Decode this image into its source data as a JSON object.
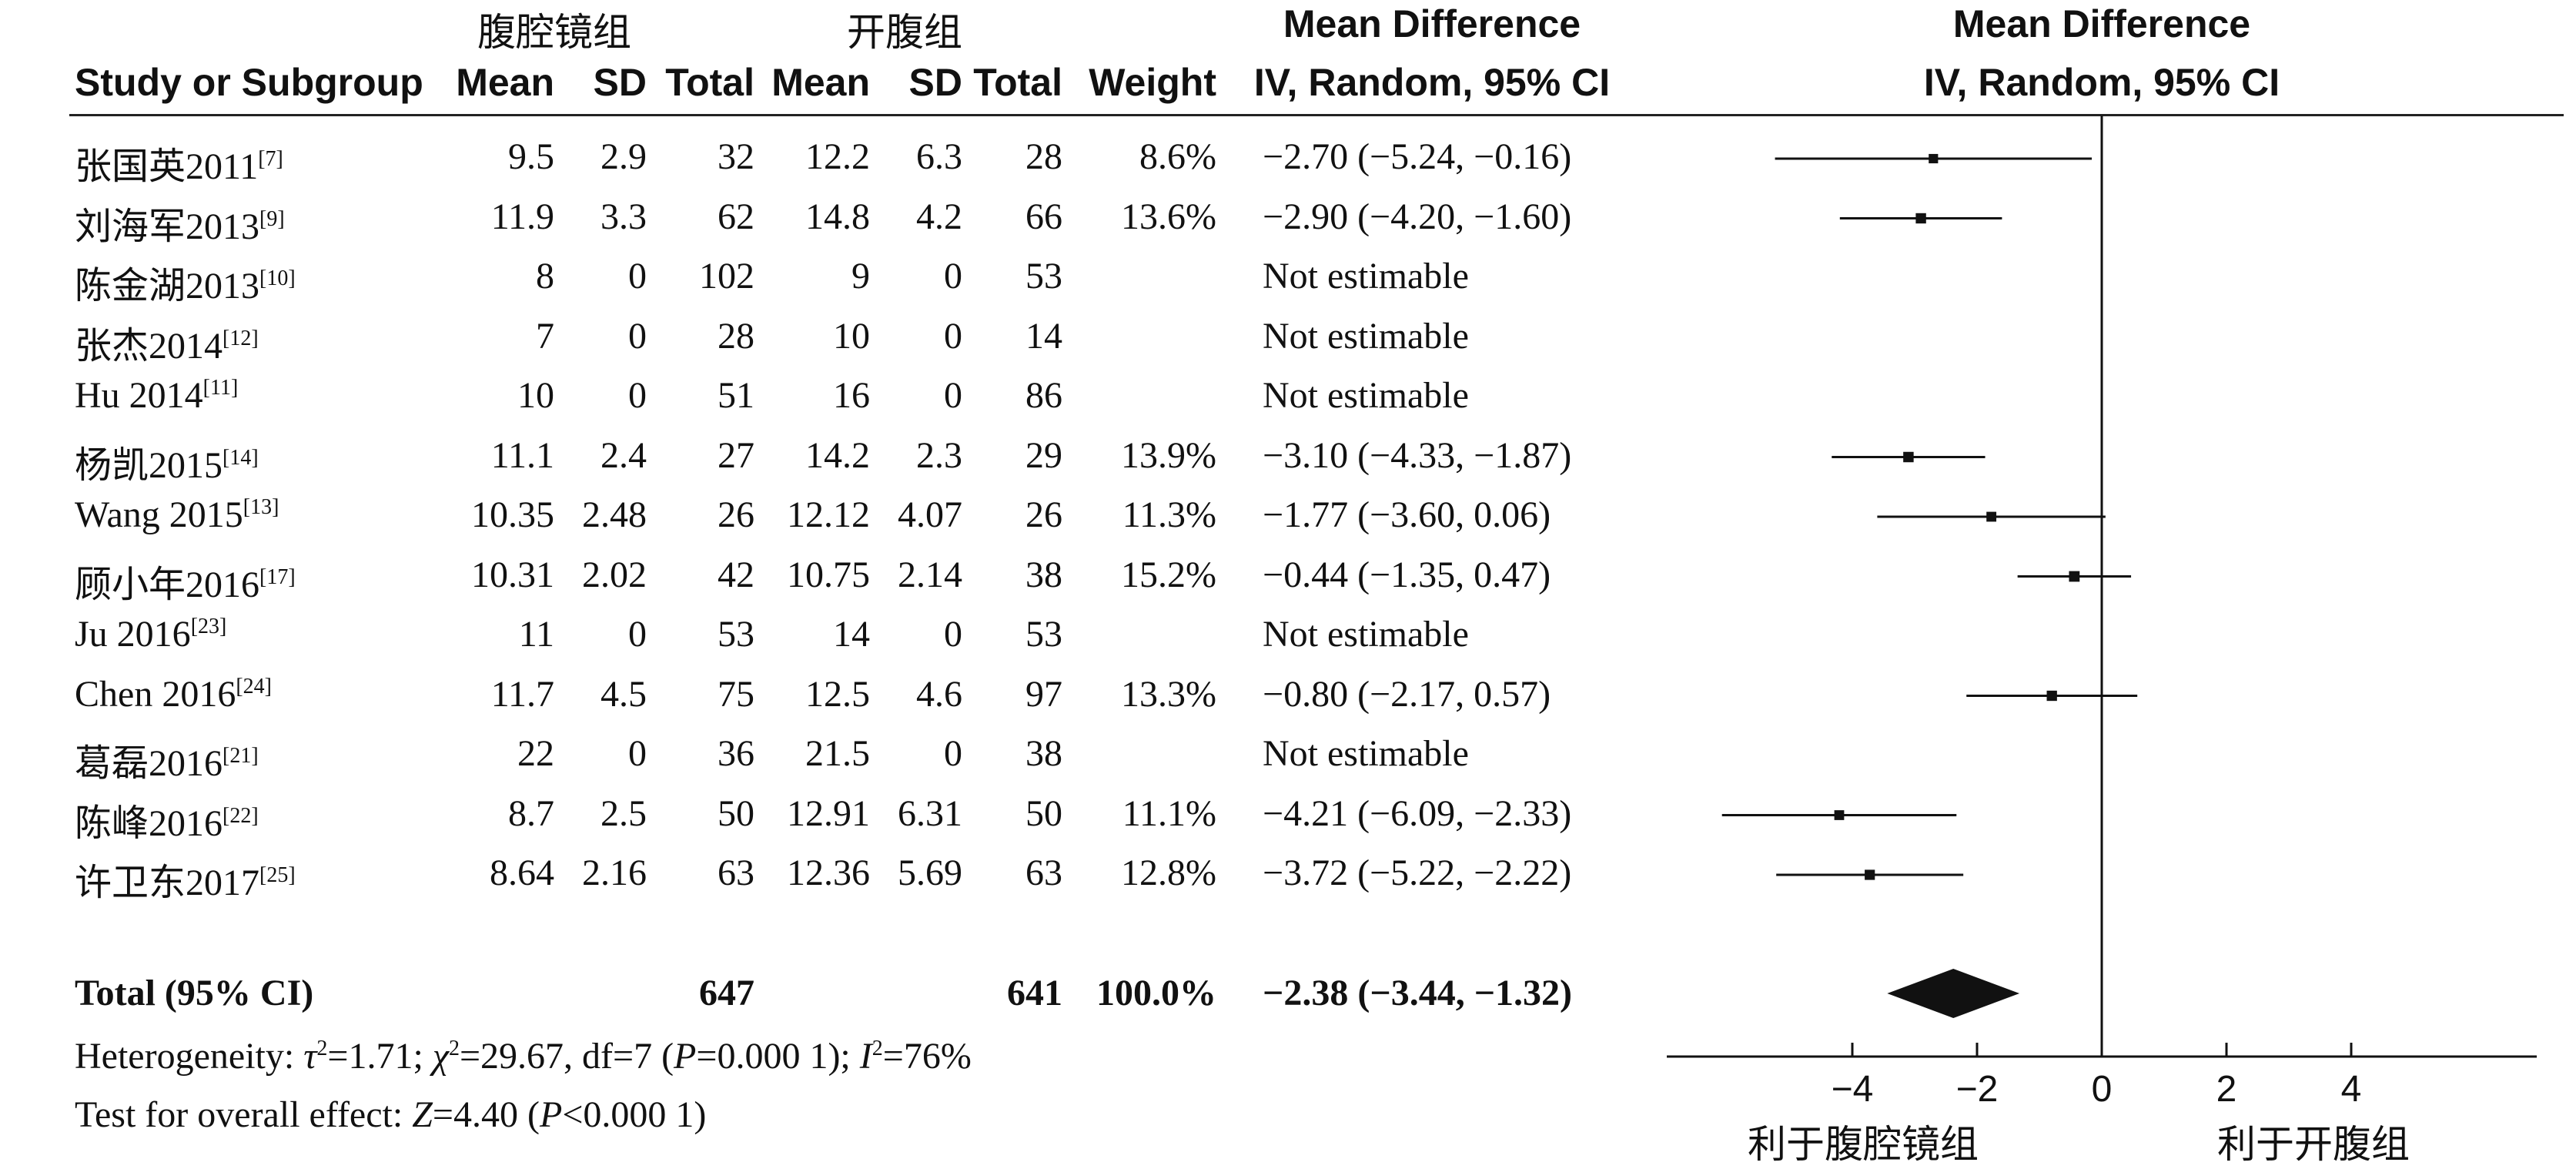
{
  "header": {
    "group1": "腹腔镜组",
    "group2": "开腹组",
    "study": "Study or Subgroup",
    "mean": "Mean",
    "sd": "SD",
    "total": "Total",
    "weight": "Weight",
    "md_title": "Mean Difference",
    "md_sub": "IV, Random, 95% CI",
    "plot_title": "Mean Difference",
    "plot_sub": "IV, Random, 95% CI"
  },
  "studies": [
    {
      "name": "张国英2011",
      "ref": "[7]",
      "m1": "9.5",
      "sd1": "2.9",
      "n1": "32",
      "m2": "12.2",
      "sd2": "6.3",
      "n2": "28",
      "weight": "8.6%",
      "ci": "−2.70 (−5.24, −0.16)"
    },
    {
      "name": "刘海军2013",
      "ref": "[9]",
      "m1": "11.9",
      "sd1": "3.3",
      "n1": "62",
      "m2": "14.8",
      "sd2": "4.2",
      "n2": "66",
      "weight": "13.6%",
      "ci": "−2.90 (−4.20, −1.60)"
    },
    {
      "name": "陈金湖2013",
      "ref": "[10]",
      "m1": "8",
      "sd1": "0",
      "n1": "102",
      "m2": "9",
      "sd2": "0",
      "n2": "53",
      "weight": "",
      "ci": "Not estimable"
    },
    {
      "name": "张杰2014",
      "ref": "[12]",
      "m1": "7",
      "sd1": "0",
      "n1": "28",
      "m2": "10",
      "sd2": "0",
      "n2": "14",
      "weight": "",
      "ci": "Not estimable"
    },
    {
      "name": "Hu 2014",
      "ref": "[11]",
      "m1": "10",
      "sd1": "0",
      "n1": "51",
      "m2": "16",
      "sd2": "0",
      "n2": "86",
      "weight": "",
      "ci": "Not estimable"
    },
    {
      "name": "杨凯2015",
      "ref": "[14]",
      "m1": "11.1",
      "sd1": "2.4",
      "n1": "27",
      "m2": "14.2",
      "sd2": "2.3",
      "n2": "29",
      "weight": "13.9%",
      "ci": "−3.10 (−4.33, −1.87)"
    },
    {
      "name": "Wang 2015",
      "ref": "[13]",
      "m1": "10.35",
      "sd1": "2.48",
      "n1": "26",
      "m2": "12.12",
      "sd2": "4.07",
      "n2": "26",
      "weight": "11.3%",
      "ci": "−1.77 (−3.60, 0.06)"
    },
    {
      "name": "顾小年2016",
      "ref": "[17]",
      "m1": "10.31",
      "sd1": "2.02",
      "n1": "42",
      "m2": "10.75",
      "sd2": "2.14",
      "n2": "38",
      "weight": "15.2%",
      "ci": "−0.44 (−1.35, 0.47)"
    },
    {
      "name": "Ju 2016",
      "ref": "[23]",
      "m1": "11",
      "sd1": "0",
      "n1": "53",
      "m2": "14",
      "sd2": "0",
      "n2": "53",
      "weight": "",
      "ci": "Not estimable"
    },
    {
      "name": "Chen 2016",
      "ref": "[24]",
      "m1": "11.7",
      "sd1": "4.5",
      "n1": "75",
      "m2": "12.5",
      "sd2": "4.6",
      "n2": "97",
      "weight": "13.3%",
      "ci": "−0.80 (−2.17, 0.57)"
    },
    {
      "name": "葛磊2016",
      "ref": "[21]",
      "m1": "22",
      "sd1": "0",
      "n1": "36",
      "m2": "21.5",
      "sd2": "0",
      "n2": "38",
      "weight": "",
      "ci": "Not estimable"
    },
    {
      "name": "陈峰2016",
      "ref": "[22]",
      "m1": "8.7",
      "sd1": "2.5",
      "n1": "50",
      "m2": "12.91",
      "sd2": "6.31",
      "n2": "50",
      "weight": "11.1%",
      "ci": "−4.21 (−6.09, −2.33)"
    },
    {
      "name": "许卫东2017",
      "ref": "[25]",
      "m1": "8.64",
      "sd1": "2.16",
      "n1": "63",
      "m2": "12.36",
      "sd2": "5.69",
      "n2": "63",
      "weight": "12.8%",
      "ci": "−3.72 (−5.22, −2.22)"
    }
  ],
  "total": {
    "label": "Total (95% CI)",
    "n1": "647",
    "n2": "641",
    "weight": "100.0%",
    "ci": "−2.38 (−3.44, −1.32)"
  },
  "heterogeneity": {
    "prefix": "Heterogeneity: ",
    "tau": "τ",
    "tau_val": "=1.71; ",
    "chi": "χ",
    "chi_val": "=29.67, df=7 (",
    "p": "P",
    "p_val": "=0.000 1); ",
    "i": "I",
    "i_val": "=76%",
    "sq": "2"
  },
  "overall": {
    "prefix": "Test for overall effect: ",
    "z": "Z",
    "z_val": "=4.40 (",
    "p": "P",
    "p_val": "<0.000 1)"
  },
  "axis_labels": {
    "left": "利于腹腔镜组",
    "right": "利于开腹组"
  },
  "chart_data": {
    "type": "forest",
    "x_ticks": [
      "−4",
      "−2",
      "0",
      "2",
      "4"
    ],
    "x_tick_values": [
      -4,
      -2,
      0,
      2,
      4
    ],
    "xlim": [
      -6.5,
      6.8
    ],
    "points": [
      {
        "md": -2.7,
        "lo": -5.24,
        "hi": -0.16,
        "weight": 8.6
      },
      {
        "md": -2.9,
        "lo": -4.2,
        "hi": -1.6,
        "weight": 13.6
      },
      null,
      null,
      null,
      {
        "md": -3.1,
        "lo": -4.33,
        "hi": -1.87,
        "weight": 13.9
      },
      {
        "md": -1.77,
        "lo": -3.6,
        "hi": 0.06,
        "weight": 11.3
      },
      {
        "md": -0.44,
        "lo": -1.35,
        "hi": 0.47,
        "weight": 15.2
      },
      null,
      {
        "md": -0.8,
        "lo": -2.17,
        "hi": 0.57,
        "weight": 13.3
      },
      null,
      {
        "md": -4.21,
        "lo": -6.09,
        "hi": -2.33,
        "weight": 11.1
      },
      {
        "md": -3.72,
        "lo": -5.22,
        "hi": -2.22,
        "weight": 12.8
      }
    ],
    "pooled": {
      "md": -2.38,
      "lo": -3.44,
      "hi": -1.32
    }
  }
}
